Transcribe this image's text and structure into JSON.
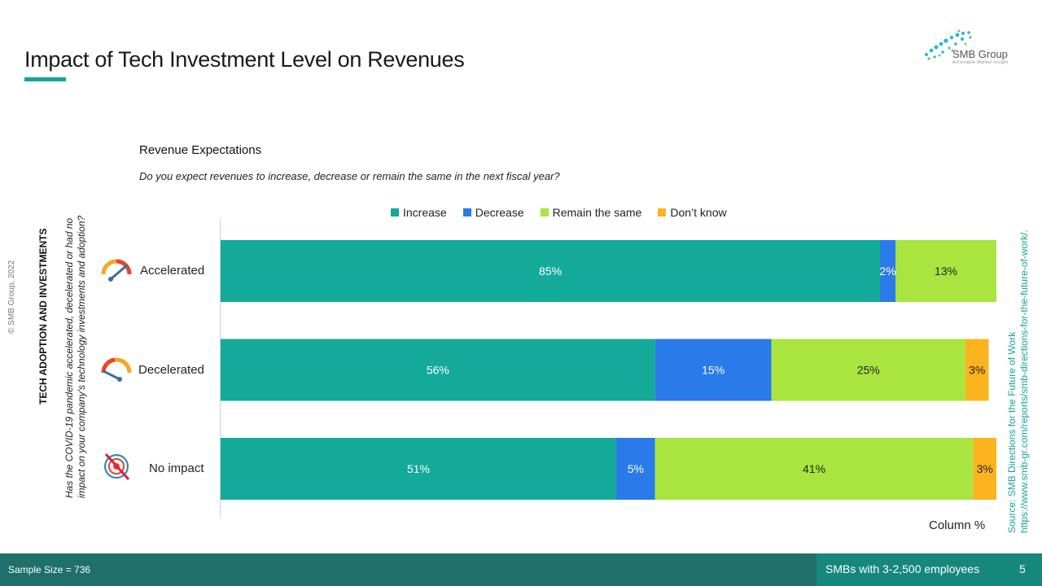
{
  "header": {
    "title": "Impact of Tech Investment Level on Revenues",
    "logo_text": "SMB Group",
    "logo_tagline": "Actionable Market Insight"
  },
  "side": {
    "copyright": "© SMB Group, 2022",
    "section_title": "TECH ADOPTION AND INVESTMENTS",
    "question_line1": "Has the COVID-19 pandemic accelerated, decelerated or had no",
    "question_line2": "impact on your company's technology investments and adoption?",
    "source_line1": "Source:  SMB Directions for the Future of Work",
    "source_line2": "https://www.smb-gr.com/reports/smb-directions-for-the-future-of-work/."
  },
  "chart_data": {
    "type": "bar",
    "orientation": "horizontal",
    "stacked": true,
    "title": "Revenue Expectations",
    "subtitle": "Do you expect revenues to increase, decrease or remain the same in the next fiscal year?",
    "xlabel": "Column %",
    "xlim": [
      0,
      100
    ],
    "legend_position": "top",
    "categories": [
      "Accelerated",
      "Decelerated",
      "No impact"
    ],
    "series": [
      {
        "name": "Increase",
        "color": "#13aa99",
        "values": [
          85,
          56,
          51
        ]
      },
      {
        "name": "Decrease",
        "color": "#2a7ae9",
        "values": [
          2,
          15,
          5
        ]
      },
      {
        "name": "Remain the same",
        "color": "#a9e43f",
        "values": [
          13,
          25,
          41
        ]
      },
      {
        "name": "Don’t know",
        "color": "#fbb41e",
        "values": [
          0,
          3,
          3
        ]
      }
    ],
    "data_labels": [
      [
        "85%",
        "2%",
        "13%",
        ""
      ],
      [
        "56%",
        "15%",
        "25%",
        "3%"
      ],
      [
        "51%",
        "5%",
        "41%",
        "3%"
      ]
    ],
    "label_colors": [
      "#ffffff",
      "#ffffff",
      "#222222",
      "#222222"
    ]
  },
  "icons": [
    "speedometer-fast-icon",
    "speedometer-slow-icon",
    "target-crossed-icon"
  ],
  "footer": {
    "sample_size": "Sample Size = 736",
    "segment": "SMBs with 3-2,500 employees",
    "page_number": "5"
  }
}
